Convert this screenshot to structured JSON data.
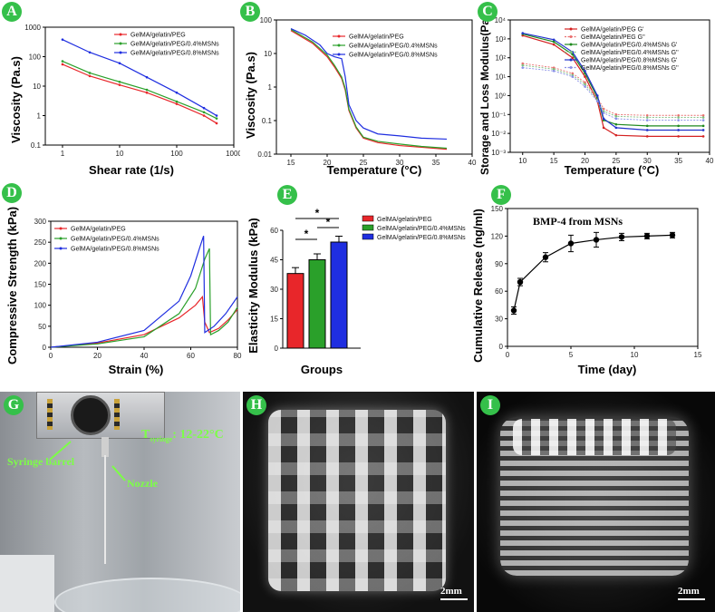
{
  "panels": {
    "A": {
      "letter": "A",
      "xlabel": "Shear rate (1/s)",
      "ylabel": "Viscosity (Pa.s)",
      "xticks": [
        "1",
        "10",
        "100",
        "1000"
      ],
      "yticks": [
        "0.1",
        "1",
        "10",
        "100",
        "1000"
      ]
    },
    "B": {
      "letter": "B",
      "xlabel": "Temperature (°C)",
      "ylabel": "Viscosity (Pa.s)",
      "xticks": [
        "15",
        "20",
        "25",
        "30",
        "35",
        "40"
      ],
      "yticks": [
        "0.01",
        "0.1",
        "1",
        "10",
        "100"
      ]
    },
    "C": {
      "letter": "C",
      "xlabel": "Temperature (°C)",
      "ylabel": "Storage and Loss Modulus(Pa)",
      "xticks": [
        "10",
        "15",
        "20",
        "25",
        "30",
        "35",
        "40"
      ],
      "yticks": [
        "10⁻³",
        "10⁻²",
        "10⁻¹",
        "10⁰",
        "10¹",
        "10²",
        "10³",
        "10⁴"
      ]
    },
    "D": {
      "letter": "D",
      "xlabel": "Strain (%)",
      "ylabel": "Compressive Strength (kPa)",
      "xticks": [
        "0",
        "20",
        "40",
        "60",
        "80"
      ],
      "yticks": [
        "0",
        "50",
        "100",
        "150",
        "200",
        "250",
        "300"
      ]
    },
    "E": {
      "letter": "E",
      "xlabel": "Groups",
      "ylabel": "Elasticity Modulus (kPa)",
      "yticks": [
        "0",
        "15",
        "30",
        "45",
        "60"
      ],
      "sig": [
        "*",
        "*",
        "*"
      ]
    },
    "F": {
      "letter": "F",
      "xlabel": "Time (day)",
      "ylabel": "Cumulative Release (ng/ml)",
      "xticks": [
        "0",
        "5",
        "10",
        "15"
      ],
      "yticks": [
        "0",
        "30",
        "60",
        "90",
        "120",
        "150"
      ],
      "title": "BMP-4 from MSNs"
    },
    "G": {
      "letter": "G",
      "syringe": "Syringe barrel",
      "nozzle": "Nozzle",
      "temp_prefix": "T",
      "temp_sub": "syringe",
      "temp_value": ": 12-22°C"
    },
    "H": {
      "letter": "H",
      "scale": "2mm"
    },
    "I": {
      "letter": "I",
      "scale": "2mm"
    }
  },
  "legends": {
    "three": [
      "GelMA/gelatin/PEG",
      "GelMA/gelatin/PEG/0.4%MSNs",
      "GelMA/gelatin/PEG/0.8%MSNs"
    ],
    "six": [
      "GelMA/gelatin/PEG G'",
      "GelMA/gelatin/PEG G''",
      "GelMA/gelatin/PEG/0.4%MSNs G'",
      "GelMA/gelatin/PEG/0.4%MSNs G''",
      "GelMA/gelatin/PEG/0.8%MSNs G'",
      "GelMA/gelatin/PEG/0.8%MSNs G''"
    ]
  },
  "colors": {
    "red": "#e8262a",
    "green": "#2aa02a",
    "blue": "#1f2ee0",
    "letter_bg": "#35c04a"
  },
  "chart_data": [
    {
      "id": "A",
      "type": "line",
      "title": "",
      "xlabel": "Shear rate (1/s)",
      "ylabel": "Viscosity (Pa.s)",
      "xscale": "log",
      "yscale": "log",
      "xlim": [
        0.5,
        1000
      ],
      "ylim": [
        0.1,
        1000
      ],
      "series": [
        {
          "name": "GelMA/gelatin/PEG",
          "x": [
            1,
            3,
            10,
            30,
            100,
            300,
            500
          ],
          "values": [
            55,
            22,
            11,
            6,
            2.5,
            1.0,
            0.55
          ]
        },
        {
          "name": "GelMA/gelatin/PEG/0.4%MSNs",
          "x": [
            1,
            3,
            10,
            30,
            100,
            300,
            500
          ],
          "values": [
            70,
            28,
            14,
            7.5,
            3,
            1.3,
            0.8
          ]
        },
        {
          "name": "GelMA/gelatin/PEG/0.8%MSNs",
          "x": [
            1,
            3,
            10,
            30,
            100,
            300,
            500
          ],
          "values": [
            380,
            140,
            60,
            20,
            6,
            1.8,
            1.0
          ]
        }
      ]
    },
    {
      "id": "B",
      "type": "line",
      "xlabel": "Temperature (°C)",
      "ylabel": "Viscosity (Pa.s)",
      "yscale": "log",
      "xlim": [
        13,
        40
      ],
      "ylim": [
        0.01,
        100
      ],
      "series": [
        {
          "name": "GelMA/gelatin/PEG",
          "x": [
            15,
            18,
            20,
            21,
            22,
            22.5,
            23,
            24,
            25,
            27,
            30,
            33,
            36.5
          ],
          "values": [
            48,
            20,
            8,
            4,
            1.8,
            0.8,
            0.2,
            0.06,
            0.03,
            0.022,
            0.018,
            0.016,
            0.014
          ]
        },
        {
          "name": "GelMA/gelatin/PEG/0.4%MSNs",
          "x": [
            15,
            18,
            20,
            21,
            22,
            22.5,
            23,
            24,
            25,
            27,
            30,
            33,
            36.5
          ],
          "values": [
            52,
            22,
            9,
            4.5,
            2,
            0.9,
            0.22,
            0.065,
            0.032,
            0.024,
            0.02,
            0.017,
            0.015
          ]
        },
        {
          "name": "GelMA/gelatin/PEG/0.8%MSNs",
          "x": [
            15,
            17,
            19,
            20,
            21,
            22,
            22.5,
            23,
            24,
            25,
            27,
            30,
            33,
            36.5
          ],
          "values": [
            55,
            35,
            18,
            10,
            8,
            7,
            2,
            0.3,
            0.1,
            0.06,
            0.04,
            0.035,
            0.03,
            0.028
          ]
        }
      ]
    },
    {
      "id": "C",
      "type": "line",
      "xlabel": "Temperature (°C)",
      "ylabel": "Storage and Loss Modulus(Pa)",
      "yscale": "log",
      "xlim": [
        8,
        40
      ],
      "ylim": [
        0.001,
        10000
      ],
      "series": [
        {
          "name": "GelMA/gelatin/PEG G'",
          "x": [
            10,
            15,
            18,
            20,
            22,
            23,
            25,
            30,
            35,
            39
          ],
          "values": [
            1500,
            500,
            100,
            10,
            0.5,
            0.02,
            0.008,
            0.007,
            0.007,
            0.007
          ]
        },
        {
          "name": "GelMA/gelatin/PEG G''",
          "x": [
            10,
            15,
            18,
            20,
            22,
            23,
            25,
            30,
            35,
            39
          ],
          "values": [
            50,
            30,
            15,
            5,
            0.8,
            0.2,
            0.1,
            0.09,
            0.09,
            0.09
          ]
        },
        {
          "name": "GelMA/gelatin/PEG/0.4%MSNs G'",
          "x": [
            10,
            15,
            18,
            20,
            22,
            23,
            25,
            30,
            35,
            39
          ],
          "values": [
            1800,
            700,
            150,
            15,
            0.8,
            0.05,
            0.03,
            0.025,
            0.025,
            0.025
          ]
        },
        {
          "name": "GelMA/gelatin/PEG/0.4%MSNs G''",
          "x": [
            10,
            15,
            18,
            20,
            22,
            23,
            25,
            30,
            35,
            39
          ],
          "values": [
            40,
            25,
            12,
            4,
            0.6,
            0.15,
            0.08,
            0.07,
            0.07,
            0.07
          ]
        },
        {
          "name": "GelMA/gelatin/PEG/0.8%MSNs G'",
          "x": [
            10,
            15,
            18,
            20,
            22,
            23,
            25,
            30,
            35,
            39
          ],
          "values": [
            2000,
            900,
            200,
            20,
            1,
            0.06,
            0.02,
            0.015,
            0.015,
            0.015
          ]
        },
        {
          "name": "GelMA/gelatin/PEG/0.8%MSNs G''",
          "x": [
            10,
            15,
            18,
            20,
            22,
            23,
            25,
            30,
            35,
            39
          ],
          "values": [
            30,
            20,
            10,
            3,
            0.5,
            0.12,
            0.06,
            0.05,
            0.05,
            0.05
          ]
        }
      ]
    },
    {
      "id": "D",
      "type": "line",
      "xlabel": "Strain (%)",
      "ylabel": "Compressive Strength (kPa)",
      "xlim": [
        0,
        80
      ],
      "ylim": [
        0,
        300
      ],
      "series": [
        {
          "name": "GelMA/gelatin/PEG",
          "x": [
            0,
            20,
            40,
            55,
            62,
            65,
            66,
            68,
            72,
            76,
            80
          ],
          "values": [
            0,
            10,
            30,
            70,
            100,
            120,
            60,
            35,
            45,
            65,
            90
          ]
        },
        {
          "name": "GelMA/gelatin/PEG/0.4%MSNs",
          "x": [
            0,
            20,
            40,
            55,
            62,
            66,
            68,
            68.5,
            72,
            76,
            80
          ],
          "values": [
            0,
            8,
            25,
            80,
            140,
            210,
            235,
            30,
            40,
            60,
            95
          ]
        },
        {
          "name": "GelMA/gelatin/PEG/0.8%MSNs",
          "x": [
            0,
            20,
            40,
            55,
            60,
            64,
            65.5,
            66,
            70,
            75,
            80
          ],
          "values": [
            0,
            12,
            40,
            110,
            170,
            240,
            265,
            35,
            50,
            80,
            120
          ]
        }
      ]
    },
    {
      "id": "E",
      "type": "bar",
      "xlabel": "Groups",
      "ylabel": "Elasticity Modulus (kPa)",
      "ylim": [
        0,
        60
      ],
      "categories": [
        "GelMA/gelatin/PEG",
        "GelMA/gelatin/PEG/0.4%MSNs",
        "GelMA/gelatin/PEG/0.8%MSNs"
      ],
      "values": [
        38,
        45,
        54
      ],
      "errors": [
        3,
        3,
        3
      ]
    },
    {
      "id": "F",
      "type": "line",
      "title": "BMP-4 from MSNs",
      "xlabel": "Time (day)",
      "ylabel": "Cumulative Release (ng/ml)",
      "xlim": [
        0,
        15
      ],
      "ylim": [
        0,
        150
      ],
      "series": [
        {
          "name": "BMP-4",
          "x": [
            0.5,
            1,
            3,
            5,
            7,
            9,
            11,
            13
          ],
          "values": [
            39,
            70,
            97,
            112,
            116,
            119,
            120,
            121
          ],
          "errors": [
            4,
            4,
            5,
            9,
            8,
            4,
            3,
            3
          ]
        }
      ]
    }
  ]
}
